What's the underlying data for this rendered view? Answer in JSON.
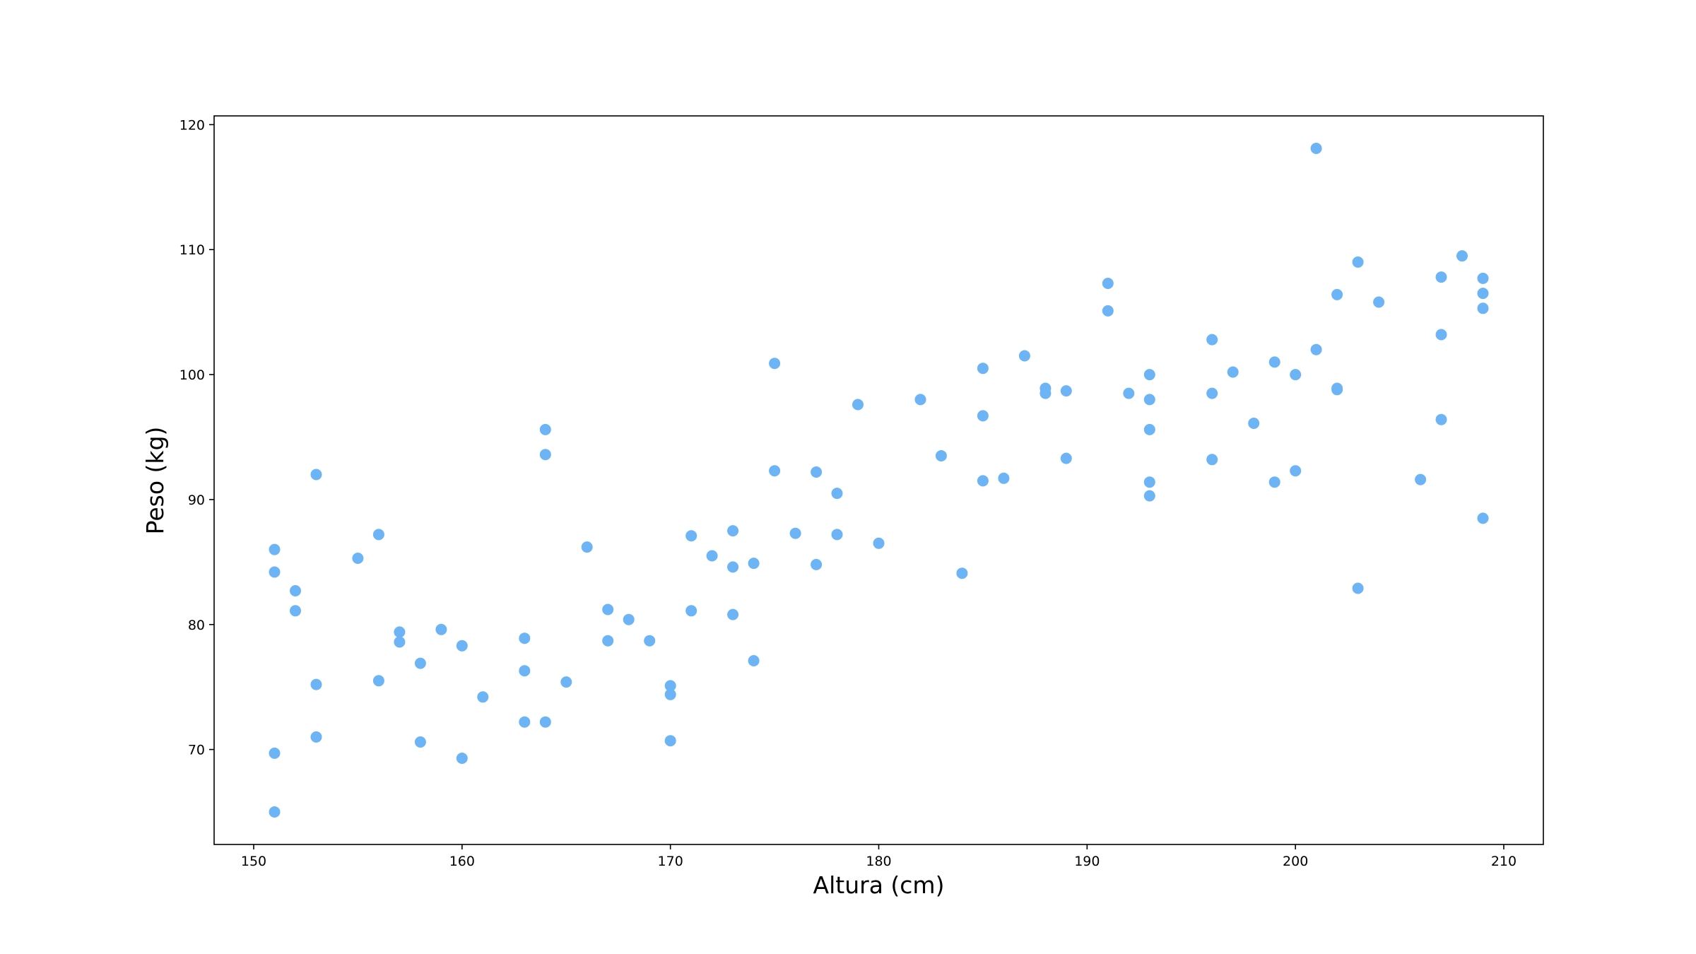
{
  "chart_data": {
    "type": "scatter",
    "title": "",
    "xlabel": "Altura (cm)",
    "ylabel": "Peso (kg)",
    "xlim": [
      148.1,
      211.9
    ],
    "ylim": [
      62.4,
      120.7
    ],
    "xticks": [
      150,
      160,
      170,
      180,
      190,
      200,
      210
    ],
    "yticks": [
      70,
      80,
      90,
      100,
      110,
      120
    ],
    "grid": false,
    "legend": "none",
    "marker_color": "#6cb4f5",
    "series": [
      {
        "points": [
          [
            151,
            65.0
          ],
          [
            151,
            69.7
          ],
          [
            151,
            84.2
          ],
          [
            151,
            86.0
          ],
          [
            152,
            81.1
          ],
          [
            152,
            82.7
          ],
          [
            153,
            71.0
          ],
          [
            153,
            75.2
          ],
          [
            153,
            92.0
          ],
          [
            155,
            85.3
          ],
          [
            156,
            75.5
          ],
          [
            156,
            87.2
          ],
          [
            157,
            78.6
          ],
          [
            157,
            79.4
          ],
          [
            158,
            70.6
          ],
          [
            158,
            76.9
          ],
          [
            159,
            79.6
          ],
          [
            160,
            69.3
          ],
          [
            160,
            78.3
          ],
          [
            161,
            74.2
          ],
          [
            163,
            72.2
          ],
          [
            163,
            76.3
          ],
          [
            163,
            78.9
          ],
          [
            164,
            72.2
          ],
          [
            164,
            93.6
          ],
          [
            164,
            95.6
          ],
          [
            165,
            75.4
          ],
          [
            166,
            86.2
          ],
          [
            167,
            78.7
          ],
          [
            167,
            81.2
          ],
          [
            168,
            80.4
          ],
          [
            169,
            78.7
          ],
          [
            170,
            70.7
          ],
          [
            170,
            74.4
          ],
          [
            170,
            75.1
          ],
          [
            171,
            81.1
          ],
          [
            171,
            87.1
          ],
          [
            172,
            85.5
          ],
          [
            173,
            80.8
          ],
          [
            173,
            84.6
          ],
          [
            173,
            87.5
          ],
          [
            174,
            77.1
          ],
          [
            174,
            84.9
          ],
          [
            175,
            92.3
          ],
          [
            175,
            100.9
          ],
          [
            176,
            87.3
          ],
          [
            177,
            84.8
          ],
          [
            177,
            92.2
          ],
          [
            178,
            87.2
          ],
          [
            178,
            90.5
          ],
          [
            179,
            97.6
          ],
          [
            180,
            86.5
          ],
          [
            182,
            98.0
          ],
          [
            183,
            93.5
          ],
          [
            184,
            84.1
          ],
          [
            185,
            91.5
          ],
          [
            185,
            96.7
          ],
          [
            185,
            100.5
          ],
          [
            186,
            91.7
          ],
          [
            187,
            101.5
          ],
          [
            188,
            98.5
          ],
          [
            188,
            98.9
          ],
          [
            189,
            93.3
          ],
          [
            189,
            98.7
          ],
          [
            191,
            105.1
          ],
          [
            191,
            107.3
          ],
          [
            192,
            98.5
          ],
          [
            193,
            90.3
          ],
          [
            193,
            91.4
          ],
          [
            193,
            95.6
          ],
          [
            193,
            98.0
          ],
          [
            193,
            100.0
          ],
          [
            196,
            93.2
          ],
          [
            196,
            98.5
          ],
          [
            196,
            102.8
          ],
          [
            197,
            100.2
          ],
          [
            198,
            96.1
          ],
          [
            199,
            91.4
          ],
          [
            199,
            101.0
          ],
          [
            200,
            92.3
          ],
          [
            200,
            100.0
          ],
          [
            201,
            102.0
          ],
          [
            201,
            118.1
          ],
          [
            202,
            98.8
          ],
          [
            202,
            98.9
          ],
          [
            202,
            106.4
          ],
          [
            203,
            82.9
          ],
          [
            203,
            109.0
          ],
          [
            204,
            105.8
          ],
          [
            206,
            91.6
          ],
          [
            207,
            96.4
          ],
          [
            207,
            103.2
          ],
          [
            207,
            107.8
          ],
          [
            208,
            109.5
          ],
          [
            209,
            88.5
          ],
          [
            209,
            105.3
          ],
          [
            209,
            106.5
          ],
          [
            209,
            107.7
          ]
        ]
      }
    ]
  }
}
